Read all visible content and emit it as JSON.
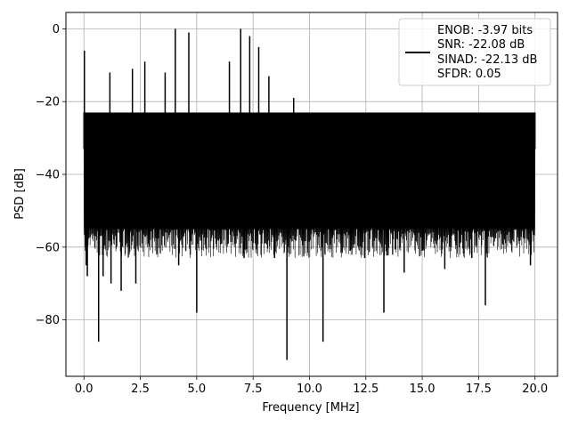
{
  "chart_data": {
    "type": "line",
    "xlabel": "Frequency [MHz]",
    "ylabel": "PSD [dB]",
    "xlim": [
      -0.8,
      21.0
    ],
    "ylim": [
      -95.5,
      4.5
    ],
    "xticks": [
      0.0,
      2.5,
      5.0,
      7.5,
      10.0,
      12.5,
      15.0,
      17.5,
      20.0
    ],
    "xtick_labels": [
      "0.0",
      "2.5",
      "5.0",
      "7.5",
      "10.0",
      "12.5",
      "15.0",
      "17.5",
      "20.0"
    ],
    "yticks": [
      0,
      -20,
      -40,
      -60,
      -80
    ],
    "ytick_labels": [
      "0",
      "−20",
      "−40",
      "−60",
      "−80"
    ],
    "grid": true,
    "legend_position": "top-right",
    "legend_entries": [
      "ENOB: -3.97 bits",
      "SNR: -22.08 dB",
      "SINAD: -22.13 dB",
      "SFDR: 0.05"
    ],
    "series_color": "#000000",
    "noise_floor_band": {
      "x_range": [
        0.0,
        20.0
      ],
      "typical_max": -23,
      "typical_min": -55,
      "mean": -37
    },
    "extrema": {
      "points": [
        {
          "x": 0.0,
          "y": -33
        },
        {
          "x": 0.02,
          "y": -6
        },
        {
          "x": 0.1,
          "y": -65
        },
        {
          "x": 0.15,
          "y": -68
        },
        {
          "x": 0.65,
          "y": -86
        },
        {
          "x": 0.85,
          "y": -68
        },
        {
          "x": 1.15,
          "y": -12
        },
        {
          "x": 1.2,
          "y": -70
        },
        {
          "x": 1.65,
          "y": -72
        },
        {
          "x": 2.15,
          "y": -11
        },
        {
          "x": 2.3,
          "y": -70
        },
        {
          "x": 2.7,
          "y": -9
        },
        {
          "x": 3.6,
          "y": -12
        },
        {
          "x": 4.05,
          "y": 0
        },
        {
          "x": 4.2,
          "y": -65
        },
        {
          "x": 4.65,
          "y": -1
        },
        {
          "x": 5.0,
          "y": -78
        },
        {
          "x": 6.45,
          "y": -9
        },
        {
          "x": 6.95,
          "y": 0
        },
        {
          "x": 7.1,
          "y": -63
        },
        {
          "x": 7.35,
          "y": -2
        },
        {
          "x": 7.75,
          "y": -5
        },
        {
          "x": 8.2,
          "y": -13
        },
        {
          "x": 8.45,
          "y": -63
        },
        {
          "x": 9.0,
          "y": -91
        },
        {
          "x": 9.3,
          "y": -19
        },
        {
          "x": 10.6,
          "y": -86
        },
        {
          "x": 11.8,
          "y": -61
        },
        {
          "x": 12.45,
          "y": -63
        },
        {
          "x": 13.3,
          "y": -78
        },
        {
          "x": 14.2,
          "y": -67
        },
        {
          "x": 15.0,
          "y": -61
        },
        {
          "x": 16.0,
          "y": -66
        },
        {
          "x": 17.2,
          "y": -63
        },
        {
          "x": 17.8,
          "y": -76
        },
        {
          "x": 19.8,
          "y": -65
        },
        {
          "x": 20.0,
          "y": -33
        }
      ]
    }
  }
}
